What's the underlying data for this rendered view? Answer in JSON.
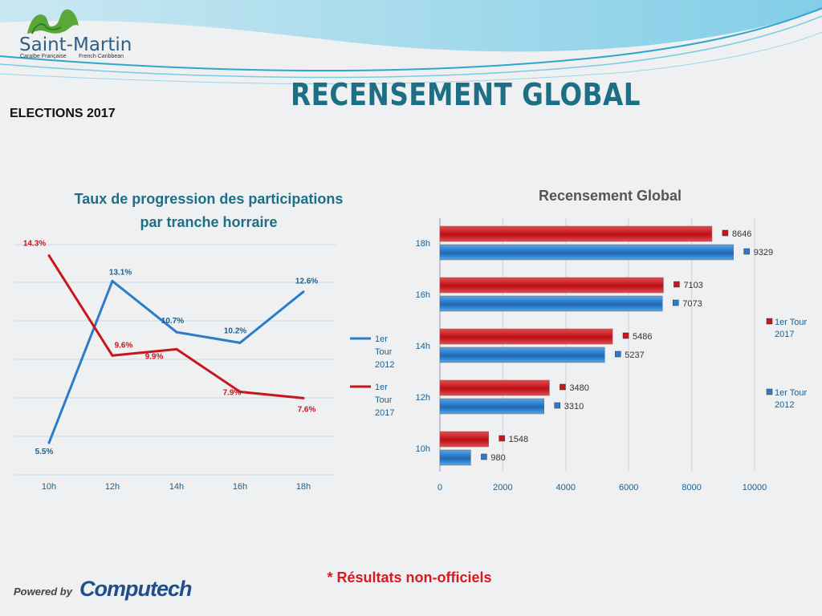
{
  "header": {
    "title": "RECENSEMENT GLOBAL",
    "subtitle": "ELECTIONS 2017",
    "logo": {
      "name": "Saint-Martin",
      "sub_fr": "Caraïbe Française",
      "sub_en": "French Caribbean",
      "icon": "island-logo-icon"
    }
  },
  "footer": {
    "note": "* Résultats non-officiels",
    "powered_label": "Powered by",
    "brand": "Computech"
  },
  "colors": {
    "blue": "#2c7cc9",
    "red": "#c8161c",
    "title": "#1d6f86"
  },
  "chart_data": [
    {
      "type": "line",
      "title": "Taux de progression des participations",
      "title_line2": "par tranche horraire",
      "categories": [
        "10h",
        "12h",
        "14h",
        "16h",
        "18h"
      ],
      "series": [
        {
          "name": "1er Tour 2012",
          "legend_lines": [
            "1er",
            "Tour",
            "2012"
          ],
          "values": [
            5.5,
            13.1,
            10.7,
            10.2,
            12.6
          ],
          "labels": [
            "5.5%",
            "13.1%",
            "10.7%",
            "10.2%",
            "12.6%"
          ],
          "color": "#2c7cc9"
        },
        {
          "name": "1er Tour 2017",
          "legend_lines": [
            "1er",
            "Tour",
            "2017"
          ],
          "values": [
            14.3,
            9.6,
            9.9,
            7.9,
            7.6
          ],
          "labels": [
            "14.3%",
            "9.6%",
            "9.9%",
            "7.9%",
            "7.6%"
          ],
          "color": "#c8161c"
        }
      ],
      "ylim": [
        4,
        15
      ],
      "grid": true,
      "legend": "right"
    },
    {
      "type": "bar",
      "orientation": "horizontal",
      "title": "Recensement Global",
      "categories": [
        "18h",
        "16h",
        "14h",
        "12h",
        "10h"
      ],
      "series": [
        {
          "name": "1er Tour 2017",
          "legend_lines": [
            "1er Tour",
            "2017"
          ],
          "values": [
            8646,
            7103,
            5486,
            3480,
            1548
          ],
          "color": "#c8161c"
        },
        {
          "name": "1er Tour 2012",
          "legend_lines": [
            "1er Tour",
            "2012"
          ],
          "values": [
            9329,
            7073,
            5237,
            3310,
            980
          ],
          "color": "#2c7cc9"
        }
      ],
      "xticks": [
        "0",
        "2000",
        "4000",
        "6000",
        "8000",
        "10000"
      ],
      "xlim": [
        0,
        10000
      ],
      "grid": true,
      "legend": "right"
    }
  ]
}
